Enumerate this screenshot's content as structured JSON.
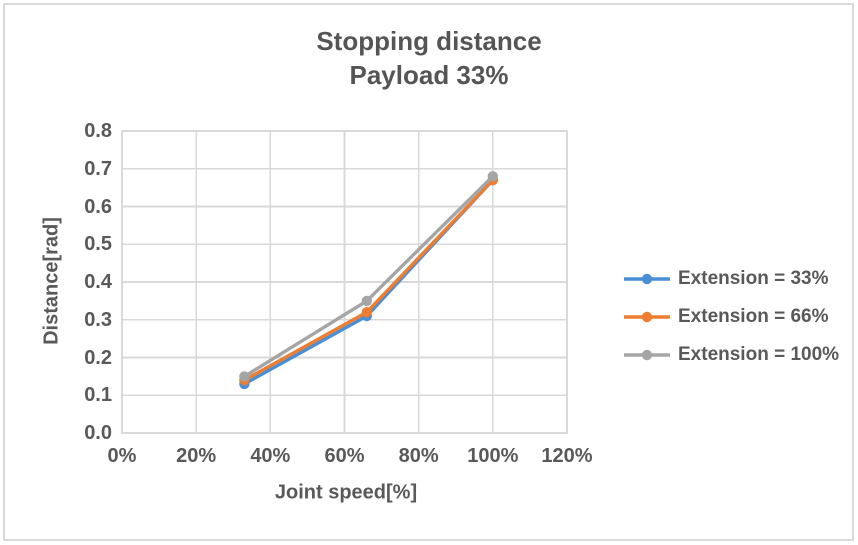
{
  "chart_data": {
    "type": "line",
    "title_line1": "Stopping distance",
    "title_line2": "Payload 33%",
    "xlabel": "Joint speed[%]",
    "ylabel": "Distance[rad]",
    "x": [
      33,
      66,
      100
    ],
    "series": [
      {
        "name": "Extension = 33%",
        "color": "#4a8ed4",
        "values": [
          0.13,
          0.31,
          0.67
        ]
      },
      {
        "name": "Extension = 66%",
        "color": "#ed7d31",
        "values": [
          0.14,
          0.32,
          0.67
        ]
      },
      {
        "name": "Extension = 100%",
        "color": "#a5a5a5",
        "values": [
          0.15,
          0.35,
          0.68
        ]
      }
    ],
    "xlim": [
      0,
      120
    ],
    "ylim": [
      0,
      0.8
    ],
    "x_ticks": [
      "0%",
      "20%",
      "40%",
      "60%",
      "80%",
      "100%",
      "120%"
    ],
    "y_ticks_top_to_bottom": [
      "0.8",
      "0.7",
      "0.6",
      "0.5",
      "0.4",
      "0.3",
      "0.2",
      "0.1",
      "0.0"
    ],
    "grid": true,
    "legend_position": "right",
    "colors": {
      "text": "#595959",
      "gridline": "#d9d9d9",
      "chart_border": "#d9d9d9",
      "background": "#ffffff"
    }
  }
}
